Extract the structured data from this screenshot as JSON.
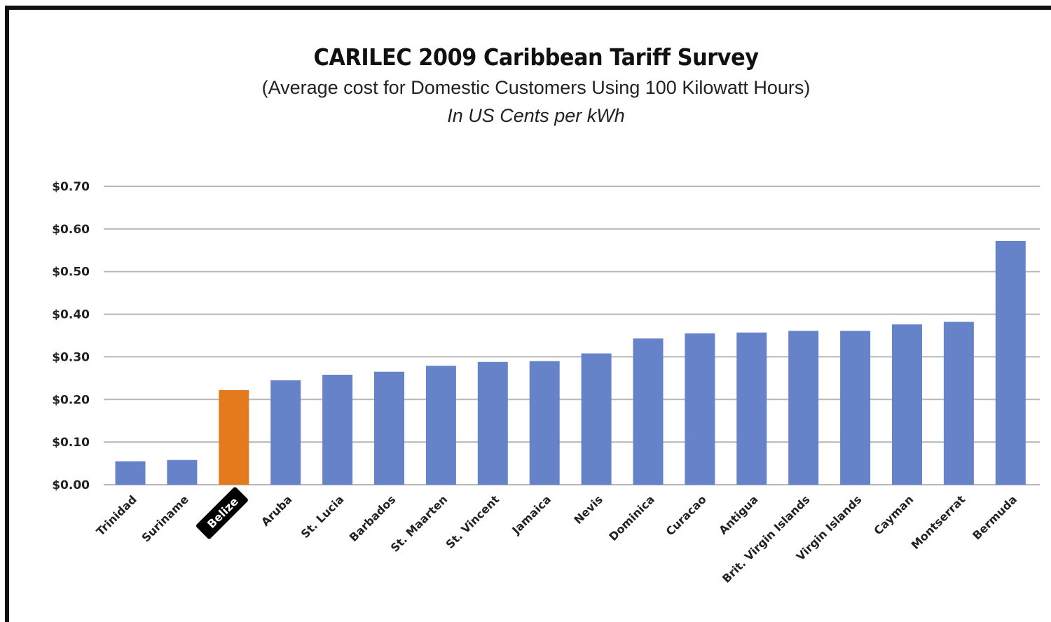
{
  "chart_data": {
    "type": "bar",
    "title": "CARILEC 2009 Caribbean Tariff Survey",
    "subtitle": "(Average cost for Domestic Customers Using 100 Kilowatt Hours)",
    "units_note": "In US Cents per kWh",
    "xlabel": "",
    "ylabel": "",
    "ylim": [
      0,
      0.7
    ],
    "yticks": [
      {
        "value": 0.0,
        "label": "$0.00"
      },
      {
        "value": 0.1,
        "label": "$0.10"
      },
      {
        "value": 0.2,
        "label": "$0.20"
      },
      {
        "value": 0.3,
        "label": "$0.30"
      },
      {
        "value": 0.4,
        "label": "$0.40"
      },
      {
        "value": 0.5,
        "label": "$0.50"
      },
      {
        "value": 0.6,
        "label": "$0.60"
      },
      {
        "value": 0.7,
        "label": "$0.70"
      }
    ],
    "grid": true,
    "categories": [
      "Trinidad",
      "Suriname",
      "Belize",
      "Aruba",
      "St. Lucia",
      "Barbados",
      "St. Maarten",
      "St. Vincent",
      "Jamaica",
      "Nevis",
      "Dominica",
      "Curacao",
      "Antigua",
      "Brit. Virgin Islands",
      "Virgin Islands",
      "Cayman",
      "Montserrat",
      "Bermuda"
    ],
    "values": [
      0.055,
      0.058,
      0.222,
      0.245,
      0.258,
      0.265,
      0.279,
      0.288,
      0.29,
      0.308,
      0.343,
      0.355,
      0.357,
      0.361,
      0.361,
      0.376,
      0.382,
      0.572
    ],
    "highlight_index": 2,
    "colors": {
      "bar": "#6682c8",
      "highlight": "#e47a1e",
      "grid": "#b8b8b8",
      "highlight_label_bg": "#000000"
    }
  }
}
